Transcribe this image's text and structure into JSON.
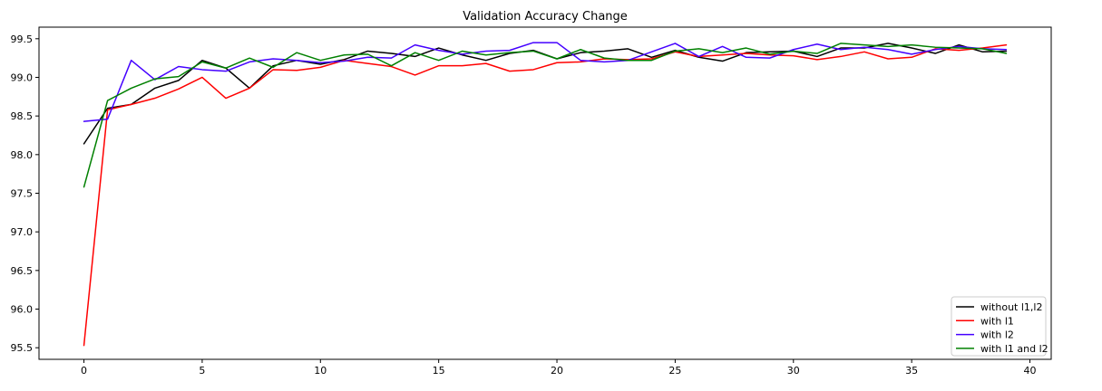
{
  "chart_data": {
    "type": "line",
    "title": "Validation Accuracy Change",
    "xlabel": "",
    "ylabel": "",
    "xlim": [
      -1.9,
      40.9
    ],
    "ylim": [
      95.35,
      99.65
    ],
    "xticks": [
      0,
      5,
      10,
      15,
      20,
      25,
      30,
      35,
      40
    ],
    "yticks": [
      95.5,
      96.0,
      96.5,
      97.0,
      97.5,
      98.0,
      98.5,
      99.0,
      99.5
    ],
    "grid": false,
    "legend_position": "lower-right",
    "x": [
      0,
      1,
      2,
      3,
      4,
      5,
      6,
      7,
      8,
      9,
      10,
      11,
      12,
      13,
      14,
      15,
      16,
      17,
      18,
      19,
      20,
      21,
      22,
      23,
      24,
      25,
      26,
      27,
      28,
      29,
      30,
      31,
      32,
      33,
      34,
      35,
      36,
      37,
      38,
      39
    ],
    "series": [
      {
        "name": "without l1,l2",
        "color": "#000000",
        "values": [
          98.14,
          98.6,
          98.65,
          98.86,
          98.96,
          99.22,
          99.12,
          98.86,
          99.15,
          99.22,
          99.17,
          99.23,
          99.34,
          99.31,
          99.27,
          99.38,
          99.29,
          99.22,
          99.31,
          99.35,
          99.24,
          99.32,
          99.34,
          99.37,
          99.26,
          99.35,
          99.26,
          99.21,
          99.32,
          99.33,
          99.34,
          99.27,
          99.38,
          99.38,
          99.44,
          99.38,
          99.31,
          99.42,
          99.33,
          99.34
        ]
      },
      {
        "name": "with l1",
        "color": "#ff0000",
        "values": [
          95.53,
          98.58,
          98.65,
          98.73,
          98.85,
          99.0,
          98.73,
          98.86,
          99.1,
          99.09,
          99.13,
          99.22,
          99.18,
          99.14,
          99.03,
          99.15,
          99.15,
          99.18,
          99.08,
          99.1,
          99.19,
          99.2,
          99.24,
          99.23,
          99.24,
          99.33,
          99.27,
          99.29,
          99.31,
          99.29,
          99.28,
          99.23,
          99.27,
          99.33,
          99.24,
          99.26,
          99.37,
          99.35,
          99.38,
          99.42
        ]
      },
      {
        "name": "with l2",
        "color": "#4400ff",
        "values": [
          98.43,
          98.46,
          99.22,
          98.97,
          99.14,
          99.1,
          99.08,
          99.2,
          99.24,
          99.22,
          99.19,
          99.21,
          99.26,
          99.25,
          99.42,
          99.35,
          99.3,
          99.34,
          99.35,
          99.45,
          99.45,
          99.22,
          99.2,
          99.22,
          99.33,
          99.44,
          99.27,
          99.4,
          99.26,
          99.25,
          99.36,
          99.43,
          99.36,
          99.39,
          99.36,
          99.3,
          99.36,
          99.4,
          99.37,
          99.36
        ]
      },
      {
        "name": "with l1 and l2",
        "color": "#008000",
        "values": [
          97.58,
          98.7,
          98.86,
          98.98,
          99.01,
          99.2,
          99.12,
          99.25,
          99.13,
          99.32,
          99.22,
          99.29,
          99.3,
          99.15,
          99.32,
          99.22,
          99.34,
          99.29,
          99.32,
          99.34,
          99.24,
          99.36,
          99.25,
          99.22,
          99.22,
          99.34,
          99.37,
          99.32,
          99.38,
          99.3,
          99.34,
          99.31,
          99.44,
          99.42,
          99.4,
          99.42,
          99.39,
          99.38,
          99.37,
          99.31
        ]
      }
    ]
  }
}
